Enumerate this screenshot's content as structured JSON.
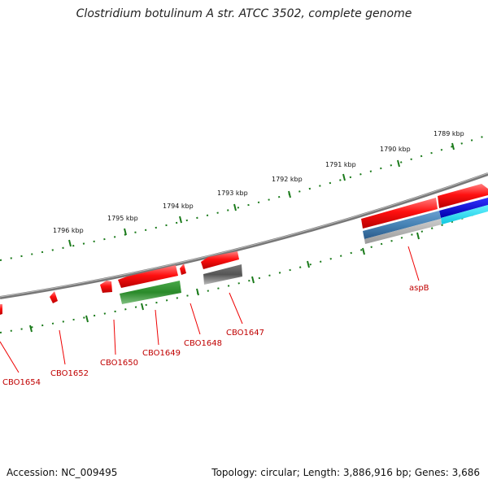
{
  "title": "Clostridium botulinum A str. ATCC 3502, complete genome",
  "footer": {
    "accession_label": "Accession:",
    "accession": "NC_009495",
    "topology_label": "Topology:",
    "topology": "circular;",
    "length_label": "Length:",
    "length": "3,886,916 bp;",
    "genes_label": "Genes:",
    "genes": "3,686"
  },
  "ticks": [
    "1789 kbp",
    "1790 kbp",
    "1791 kbp",
    "1792 kbp",
    "1793 kbp",
    "1794 kbp",
    "1795 kbp",
    "1796 kbp"
  ],
  "genes": [
    "aspB",
    "CBO1647",
    "CBO1648",
    "CBO1649",
    "CBO1650",
    "CBO1652",
    "CBO1654"
  ],
  "colors": {
    "backbone": "#8a8a8a",
    "gene_red": "#ee0000",
    "gene_green": "#2a8a2a",
    "gene_gray": "#555555",
    "gene_steelblue": "#4682b4",
    "gene_blue": "#0000dd",
    "gene_cyan": "#22ddee",
    "tick_green": "#1a7a1a",
    "label_red": "#c00000"
  }
}
